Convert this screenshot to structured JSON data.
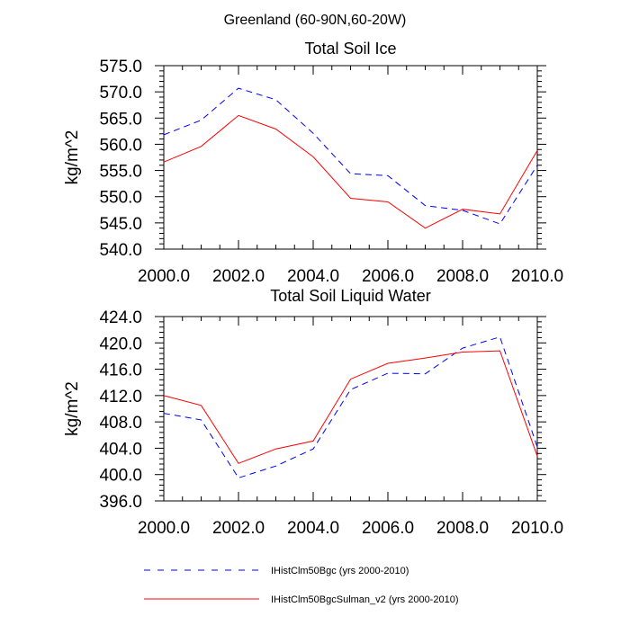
{
  "main_title": "Greenland (60-90N,60-20W)",
  "legend": [
    {
      "label": "IHistClm50Bgc (yrs 2000-2010)",
      "color": "#0000ff",
      "dash": true
    },
    {
      "label": "IHistClm50BgcSulman_v2 (yrs 2000-2010)",
      "color": "#ff0000",
      "dash": false
    }
  ],
  "chart_data": [
    {
      "type": "line",
      "title": "Total Soil Ice",
      "ylabel": "kg/m^2",
      "xlabel": "",
      "xlim": [
        2000,
        2010
      ],
      "ylim": [
        540,
        575
      ],
      "xticks": [
        2000,
        2002,
        2004,
        2006,
        2008,
        2010
      ],
      "xtick_labels": [
        "2000.0",
        "2002.0",
        "2004.0",
        "2006.0",
        "2008.0",
        "2010.0"
      ],
      "yticks": [
        540,
        545,
        550,
        555,
        560,
        565,
        570,
        575
      ],
      "ytick_labels": [
        "540.0",
        "545.0",
        "550.0",
        "555.0",
        "560.0",
        "565.0",
        "570.0",
        "575.0"
      ],
      "x": [
        2000,
        2001,
        2002,
        2003,
        2004,
        2005,
        2006,
        2007,
        2008,
        2009,
        2010
      ],
      "series": [
        {
          "name": "IHistClm50Bgc",
          "color": "#0000ff",
          "dash": true,
          "values": [
            561.8,
            564.6,
            570.7,
            568.5,
            562.1,
            554.4,
            554.0,
            548.3,
            547.4,
            544.8,
            556.0
          ]
        },
        {
          "name": "IHistClm50BgcSulman_v2",
          "color": "#ff0000",
          "dash": false,
          "values": [
            556.6,
            559.6,
            565.5,
            562.9,
            557.6,
            549.7,
            549.0,
            544.0,
            547.6,
            546.7,
            558.8
          ]
        }
      ]
    },
    {
      "type": "line",
      "title": "Total Soil Liquid Water",
      "ylabel": "kg/m^2",
      "xlabel": "",
      "xlim": [
        2000,
        2010
      ],
      "ylim": [
        396,
        424
      ],
      "xticks": [
        2000,
        2002,
        2004,
        2006,
        2008,
        2010
      ],
      "xtick_labels": [
        "2000.0",
        "2002.0",
        "2004.0",
        "2006.0",
        "2008.0",
        "2010.0"
      ],
      "yticks": [
        396,
        400,
        404,
        408,
        412,
        416,
        420,
        424
      ],
      "ytick_labels": [
        "396.0",
        "400.0",
        "404.0",
        "408.0",
        "412.0",
        "416.0",
        "420.0",
        "424.0"
      ],
      "x": [
        2000,
        2001,
        2002,
        2003,
        2004,
        2005,
        2006,
        2007,
        2008,
        2009,
        2010
      ],
      "series": [
        {
          "name": "IHistClm50Bgc",
          "color": "#0000ff",
          "dash": true,
          "values": [
            409.3,
            408.3,
            399.5,
            401.3,
            403.9,
            412.9,
            415.4,
            415.3,
            419.2,
            420.9,
            404.2
          ]
        },
        {
          "name": "IHistClm50BgcSulman_v2",
          "color": "#ff0000",
          "dash": false,
          "values": [
            412.0,
            410.5,
            401.7,
            403.9,
            405.1,
            414.5,
            416.9,
            417.7,
            418.6,
            418.8,
            402.8
          ]
        }
      ]
    }
  ]
}
